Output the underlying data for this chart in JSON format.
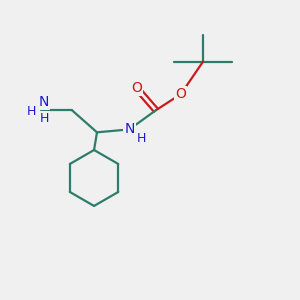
{
  "bg_color": "#f0f0f0",
  "bond_color": "#2d7d6a",
  "bond_width": 1.6,
  "atom_N_color": "#1a1acc",
  "atom_O_color": "#cc1a1a",
  "fig_w": 3.0,
  "fig_h": 3.0,
  "dpi": 100,
  "xlim": [
    0,
    10
  ],
  "ylim": [
    0,
    10
  ]
}
